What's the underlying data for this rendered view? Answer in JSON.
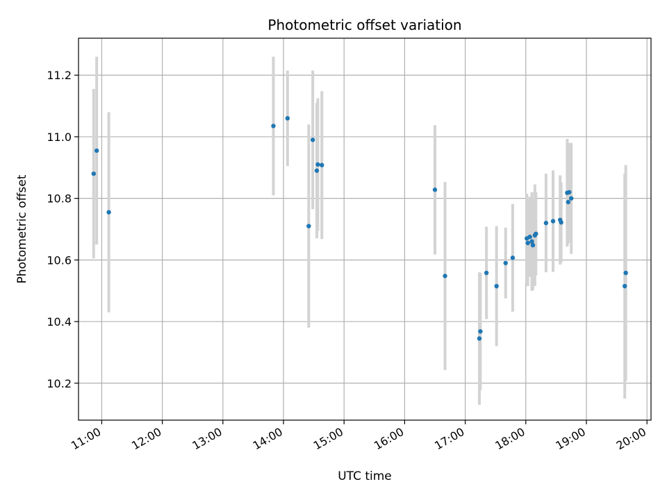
{
  "chart_data": {
    "type": "scatter",
    "title": "Photometric offset variation",
    "xlabel": "UTC time",
    "ylabel": "Photometric offset",
    "x_unit": "hours UTC",
    "xlim": [
      "10:37",
      "20:04"
    ],
    "ylim": [
      10.08,
      11.32
    ],
    "x_ticks": [
      "11:00",
      "12:00",
      "13:00",
      "14:00",
      "15:00",
      "16:00",
      "17:00",
      "18:00",
      "19:00",
      "20:00"
    ],
    "y_ticks": [
      10.2,
      10.4,
      10.6,
      10.8,
      11.0,
      11.2
    ],
    "grid": true,
    "marker_color": "#1f77b4",
    "errorbar_color": "#d3d3d3",
    "points": [
      {
        "t": "10:52",
        "y": 10.88,
        "err": 0.275
      },
      {
        "t": "10:55",
        "y": 10.955,
        "err": 0.305
      },
      {
        "t": "11:07",
        "y": 10.755,
        "err": 0.325
      },
      {
        "t": "13:50",
        "y": 11.035,
        "err": 0.225
      },
      {
        "t": "14:04",
        "y": 11.06,
        "err": 0.155
      },
      {
        "t": "14:25",
        "y": 10.71,
        "err": 0.33
      },
      {
        "t": "14:29",
        "y": 10.99,
        "err": 0.225
      },
      {
        "t": "14:33",
        "y": 10.89,
        "err": 0.22
      },
      {
        "t": "14:34",
        "y": 10.91,
        "err": 0.215
      },
      {
        "t": "14:38",
        "y": 10.908,
        "err": 0.24
      },
      {
        "t": "16:30",
        "y": 10.828,
        "err": 0.21
      },
      {
        "t": "16:40",
        "y": 10.548,
        "err": 0.305
      },
      {
        "t": "17:14",
        "y": 10.345,
        "err": 0.215
      },
      {
        "t": "17:15",
        "y": 10.368,
        "err": 0.19
      },
      {
        "t": "17:21",
        "y": 10.558,
        "err": 0.15
      },
      {
        "t": "17:31",
        "y": 10.515,
        "err": 0.195
      },
      {
        "t": "17:40",
        "y": 10.59,
        "err": 0.115
      },
      {
        "t": "17:47",
        "y": 10.607,
        "err": 0.175
      },
      {
        "t": "18:01",
        "y": 10.67,
        "err": 0.145
      },
      {
        "t": "18:02",
        "y": 10.655,
        "err": 0.14
      },
      {
        "t": "18:04",
        "y": 10.675,
        "err": 0.13
      },
      {
        "t": "18:06",
        "y": 10.66,
        "err": 0.16
      },
      {
        "t": "18:07",
        "y": 10.648,
        "err": 0.145
      },
      {
        "t": "18:09",
        "y": 10.68,
        "err": 0.165
      },
      {
        "t": "18:10",
        "y": 10.685,
        "err": 0.135
      },
      {
        "t": "18:20",
        "y": 10.72,
        "err": 0.16
      },
      {
        "t": "18:27",
        "y": 10.726,
        "err": 0.165
      },
      {
        "t": "18:34",
        "y": 10.73,
        "err": 0.145
      },
      {
        "t": "18:35",
        "y": 10.722,
        "err": 0.13
      },
      {
        "t": "18:41",
        "y": 10.818,
        "err": 0.175
      },
      {
        "t": "18:42",
        "y": 10.788,
        "err": 0.135
      },
      {
        "t": "18:43",
        "y": 10.82,
        "err": 0.16
      },
      {
        "t": "18:45",
        "y": 10.8,
        "err": 0.18
      },
      {
        "t": "19:38",
        "y": 10.515,
        "err": 0.365
      },
      {
        "t": "19:39",
        "y": 10.558,
        "err": 0.35
      }
    ]
  }
}
